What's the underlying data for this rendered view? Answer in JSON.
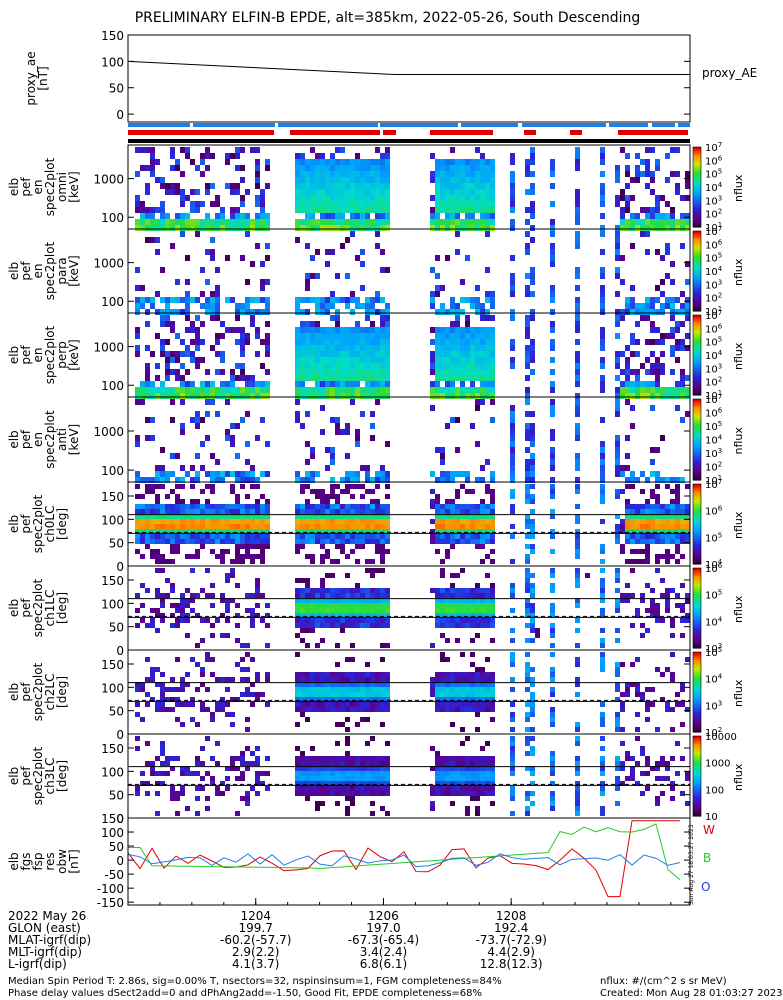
{
  "title": "PRELIMINARY ELFIN-B EPDE, alt=385km, 2022-05-26, South Descending",
  "colors": {
    "red": "#e00000",
    "blue": "#1e7fe6",
    "black": "#000000",
    "green": "#22cc22"
  },
  "chart_data": [
    {
      "type": "line",
      "panel": "proxy_ae",
      "ylabel": [
        "proxy_ae",
        "[nT]"
      ],
      "legend": "proxy_AE",
      "yticks": [
        "150",
        "100",
        "50",
        "0"
      ],
      "ylim": [
        -15,
        150
      ],
      "x": [
        "12:03",
        "12:06",
        "12:08:30"
      ],
      "y": [
        100,
        75,
        75
      ]
    },
    {
      "type": "heatmap",
      "panel": "spec_en_1",
      "ylabel": [
        "elb",
        "pef",
        "en",
        "spec2plot",
        "omni",
        "[keV]"
      ],
      "yticks": [
        "1000",
        "100"
      ],
      "zlabel": "nflux",
      "zticks": [
        "10^7",
        "10^6",
        "10^5",
        "10^4",
        "10^3",
        "10^2",
        "10^1"
      ]
    },
    {
      "type": "heatmap",
      "panel": "spec_en_2",
      "ylabel": [
        "elb",
        "pef",
        "en",
        "spec2plot",
        "para",
        "[keV]"
      ],
      "yticks": [
        "1000",
        "100"
      ],
      "zlabel": "nflux",
      "zticks": [
        "10^7",
        "10^6",
        "10^5",
        "10^4",
        "10^3",
        "10^2",
        "10^1"
      ]
    },
    {
      "type": "heatmap",
      "panel": "spec_en_3",
      "ylabel": [
        "elb",
        "pef",
        "en",
        "spec2plot",
        "perp",
        "[keV]"
      ],
      "yticks": [
        "1000",
        "100"
      ],
      "zlabel": "nflux",
      "zticks": [
        "10^7",
        "10^6",
        "10^5",
        "10^4",
        "10^3",
        "10^2",
        "10^1"
      ]
    },
    {
      "type": "heatmap",
      "panel": "spec_en_4",
      "ylabel": [
        "elb",
        "pef",
        "en",
        "spec2plot",
        "anti",
        "[keV]"
      ],
      "yticks": [
        "1000",
        "100"
      ],
      "zlabel": "nflux",
      "zticks": [
        "10^7",
        "10^6",
        "10^5",
        "10^4",
        "10^3",
        "10^2",
        "10^1"
      ]
    },
    {
      "type": "heatmap",
      "panel": "pa_ch0",
      "ylabel": [
        "elb",
        "pef",
        "spec2plot",
        "ch0LC",
        "[deg]"
      ],
      "yticks": [
        "150",
        "100",
        "50",
        "0"
      ],
      "zlabel": "nflux",
      "zticks": [
        "10^7",
        "10^6",
        "10^5",
        "10^4"
      ]
    },
    {
      "type": "heatmap",
      "panel": "pa_ch1",
      "ylabel": [
        "elb",
        "pef",
        "spec2plot",
        "ch1LC",
        "[deg]"
      ],
      "yticks": [
        "150",
        "100",
        "50",
        "0"
      ],
      "zlabel": "nflux",
      "zticks": [
        "10^6",
        "10^5",
        "10^4",
        "10^3"
      ]
    },
    {
      "type": "heatmap",
      "panel": "pa_ch2",
      "ylabel": [
        "elb",
        "pef",
        "spec2plot",
        "ch2LC",
        "[deg]"
      ],
      "yticks": [
        "150",
        "100",
        "50",
        "0"
      ],
      "zlabel": "nflux",
      "zticks": [
        "10^5",
        "10^4",
        "10^3",
        "10^2"
      ]
    },
    {
      "type": "heatmap",
      "panel": "pa_ch3",
      "ylabel": [
        "elb",
        "pef",
        "spec2plot",
        "ch3LC",
        "[deg]"
      ],
      "yticks": [
        "150",
        "100",
        "50",
        "0"
      ],
      "zlabel": "nflux",
      "zticks": [
        "10000",
        "1000",
        "100",
        "10"
      ]
    },
    {
      "type": "line",
      "panel": "fgs",
      "ylabel": [
        "elb",
        "fgs",
        "fsp",
        "res",
        "obw",
        "[nT]"
      ],
      "yticks": [
        "150",
        "100",
        "50",
        "0",
        "-50",
        "-100",
        "-150"
      ],
      "ylim": [
        -160,
        150
      ],
      "series": [
        {
          "name": "W"
        },
        {
          "name": "B"
        },
        {
          "name": "O"
        }
      ]
    }
  ],
  "xaxis": {
    "ticks": [
      "1204",
      "1206",
      "1208"
    ],
    "rows": [
      {
        "label": "2022 May 26",
        "values": [
          "1204",
          "1206",
          "1208"
        ]
      },
      {
        "label": "GLON (east)",
        "values": [
          "199.7",
          "197.0",
          "192.4"
        ]
      },
      {
        "label": "MLAT-igrf(dip)",
        "values": [
          "-60.2(-57.7)",
          "-67.3(-65.4)",
          "-73.7(-72.9)"
        ]
      },
      {
        "label": "MLT-igrf(dip)",
        "values": [
          "2.9(2.2)",
          "3.4(2.4)",
          "4.4(2.9)"
        ]
      },
      {
        "label": "L-igrf(dip)",
        "values": [
          "4.1(3.7)",
          "6.8(6.1)",
          "12.8(12.3)"
        ]
      }
    ]
  },
  "footer": {
    "left1": "Median Spin Period T: 2.86s, sig=0.00% T, nsectors=32, nspinsinsum=1, FGM completeness=84%",
    "left2": "Phase delay values dSect2add=0 and dPhAng2add=-1.50, Good Fit, EPDE completeness=68%",
    "right1": "nflux: #/(cm^2 s sr MeV)",
    "right2": "Created: Mon Aug 28 01:03:27 2023",
    "stamp": "Sun Aug 27 18:03:27 2023"
  }
}
